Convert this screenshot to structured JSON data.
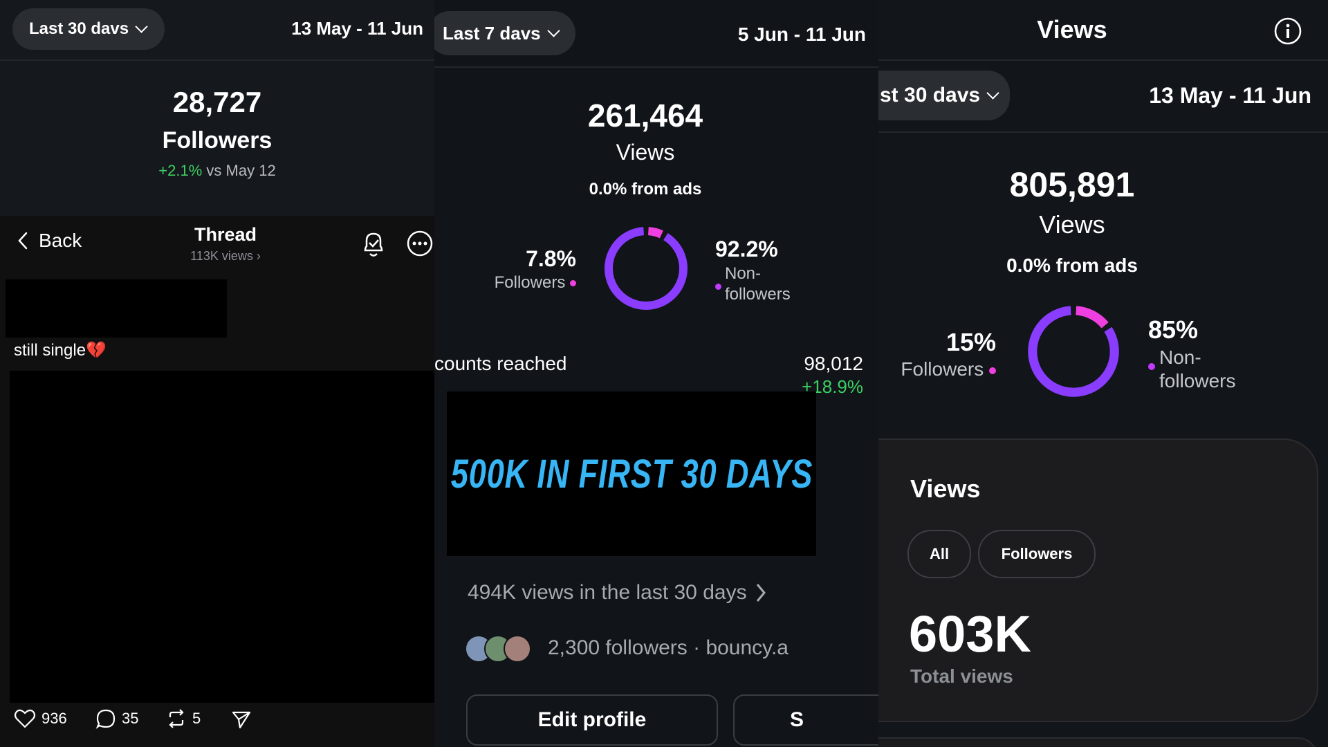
{
  "panel1": {
    "range_label": "Last 30 davs",
    "date_range": "13 May - 11 Jun",
    "followers_count": "28,727",
    "followers_label": "Followers",
    "change": "+2.1%",
    "change_suffix": "vs May 12",
    "thread": {
      "back_label": "Back",
      "title": "Thread",
      "subtitle": "113K views",
      "post_text": "still single",
      "post_emoji": "💔",
      "likes": "936",
      "comments": "35",
      "reposts": "5"
    }
  },
  "panel2": {
    "range_label": "Last 7 davs",
    "date_range": "5 Jun - 11 Jun",
    "views_count": "261,464",
    "views_label": "Views",
    "ads_text": "0.0% from ads",
    "followers_pct": "7.8%",
    "followers_label": "Followers",
    "nonfollowers_pct": "92.2%",
    "nonfollowers_label_1": "Non-",
    "nonfollowers_label_2": "followers",
    "donut": {
      "followers_fraction": 0.078,
      "followers_color": "#f03fe0",
      "nonfollowers_color": "#8a3cff"
    },
    "accounts_reached_label": "counts reached",
    "accounts_reached_value": "98,012",
    "accounts_reached_change": "+18.9%",
    "banner_text": "500K IN FIRST 30 DAYS",
    "banner_color": "#37b5f5",
    "views_last_30": "494K views in the last 30 days",
    "followers_line": "2,300 followers · bouncy.a",
    "edit_profile": "Edit profile",
    "second_button": "S"
  },
  "panel3": {
    "header_title": "Views",
    "range_label": "st 30 davs",
    "date_range": "13 May - 11 Jun",
    "views_count": "805,891",
    "views_label": "Views",
    "ads_text": "0.0% from ads",
    "followers_pct": "15%",
    "followers_label": "Followers",
    "nonfollowers_pct": "85%",
    "nonfollowers_label_1": "Non-",
    "nonfollowers_label_2": "followers",
    "donut": {
      "followers_fraction": 0.15,
      "followers_color": "#f03fe0",
      "nonfollowers_color": "#8a3cff"
    },
    "card": {
      "title": "Views",
      "chip_all": "All",
      "chip_followers": "Followers",
      "total": "603K",
      "total_label": "Total views"
    }
  }
}
